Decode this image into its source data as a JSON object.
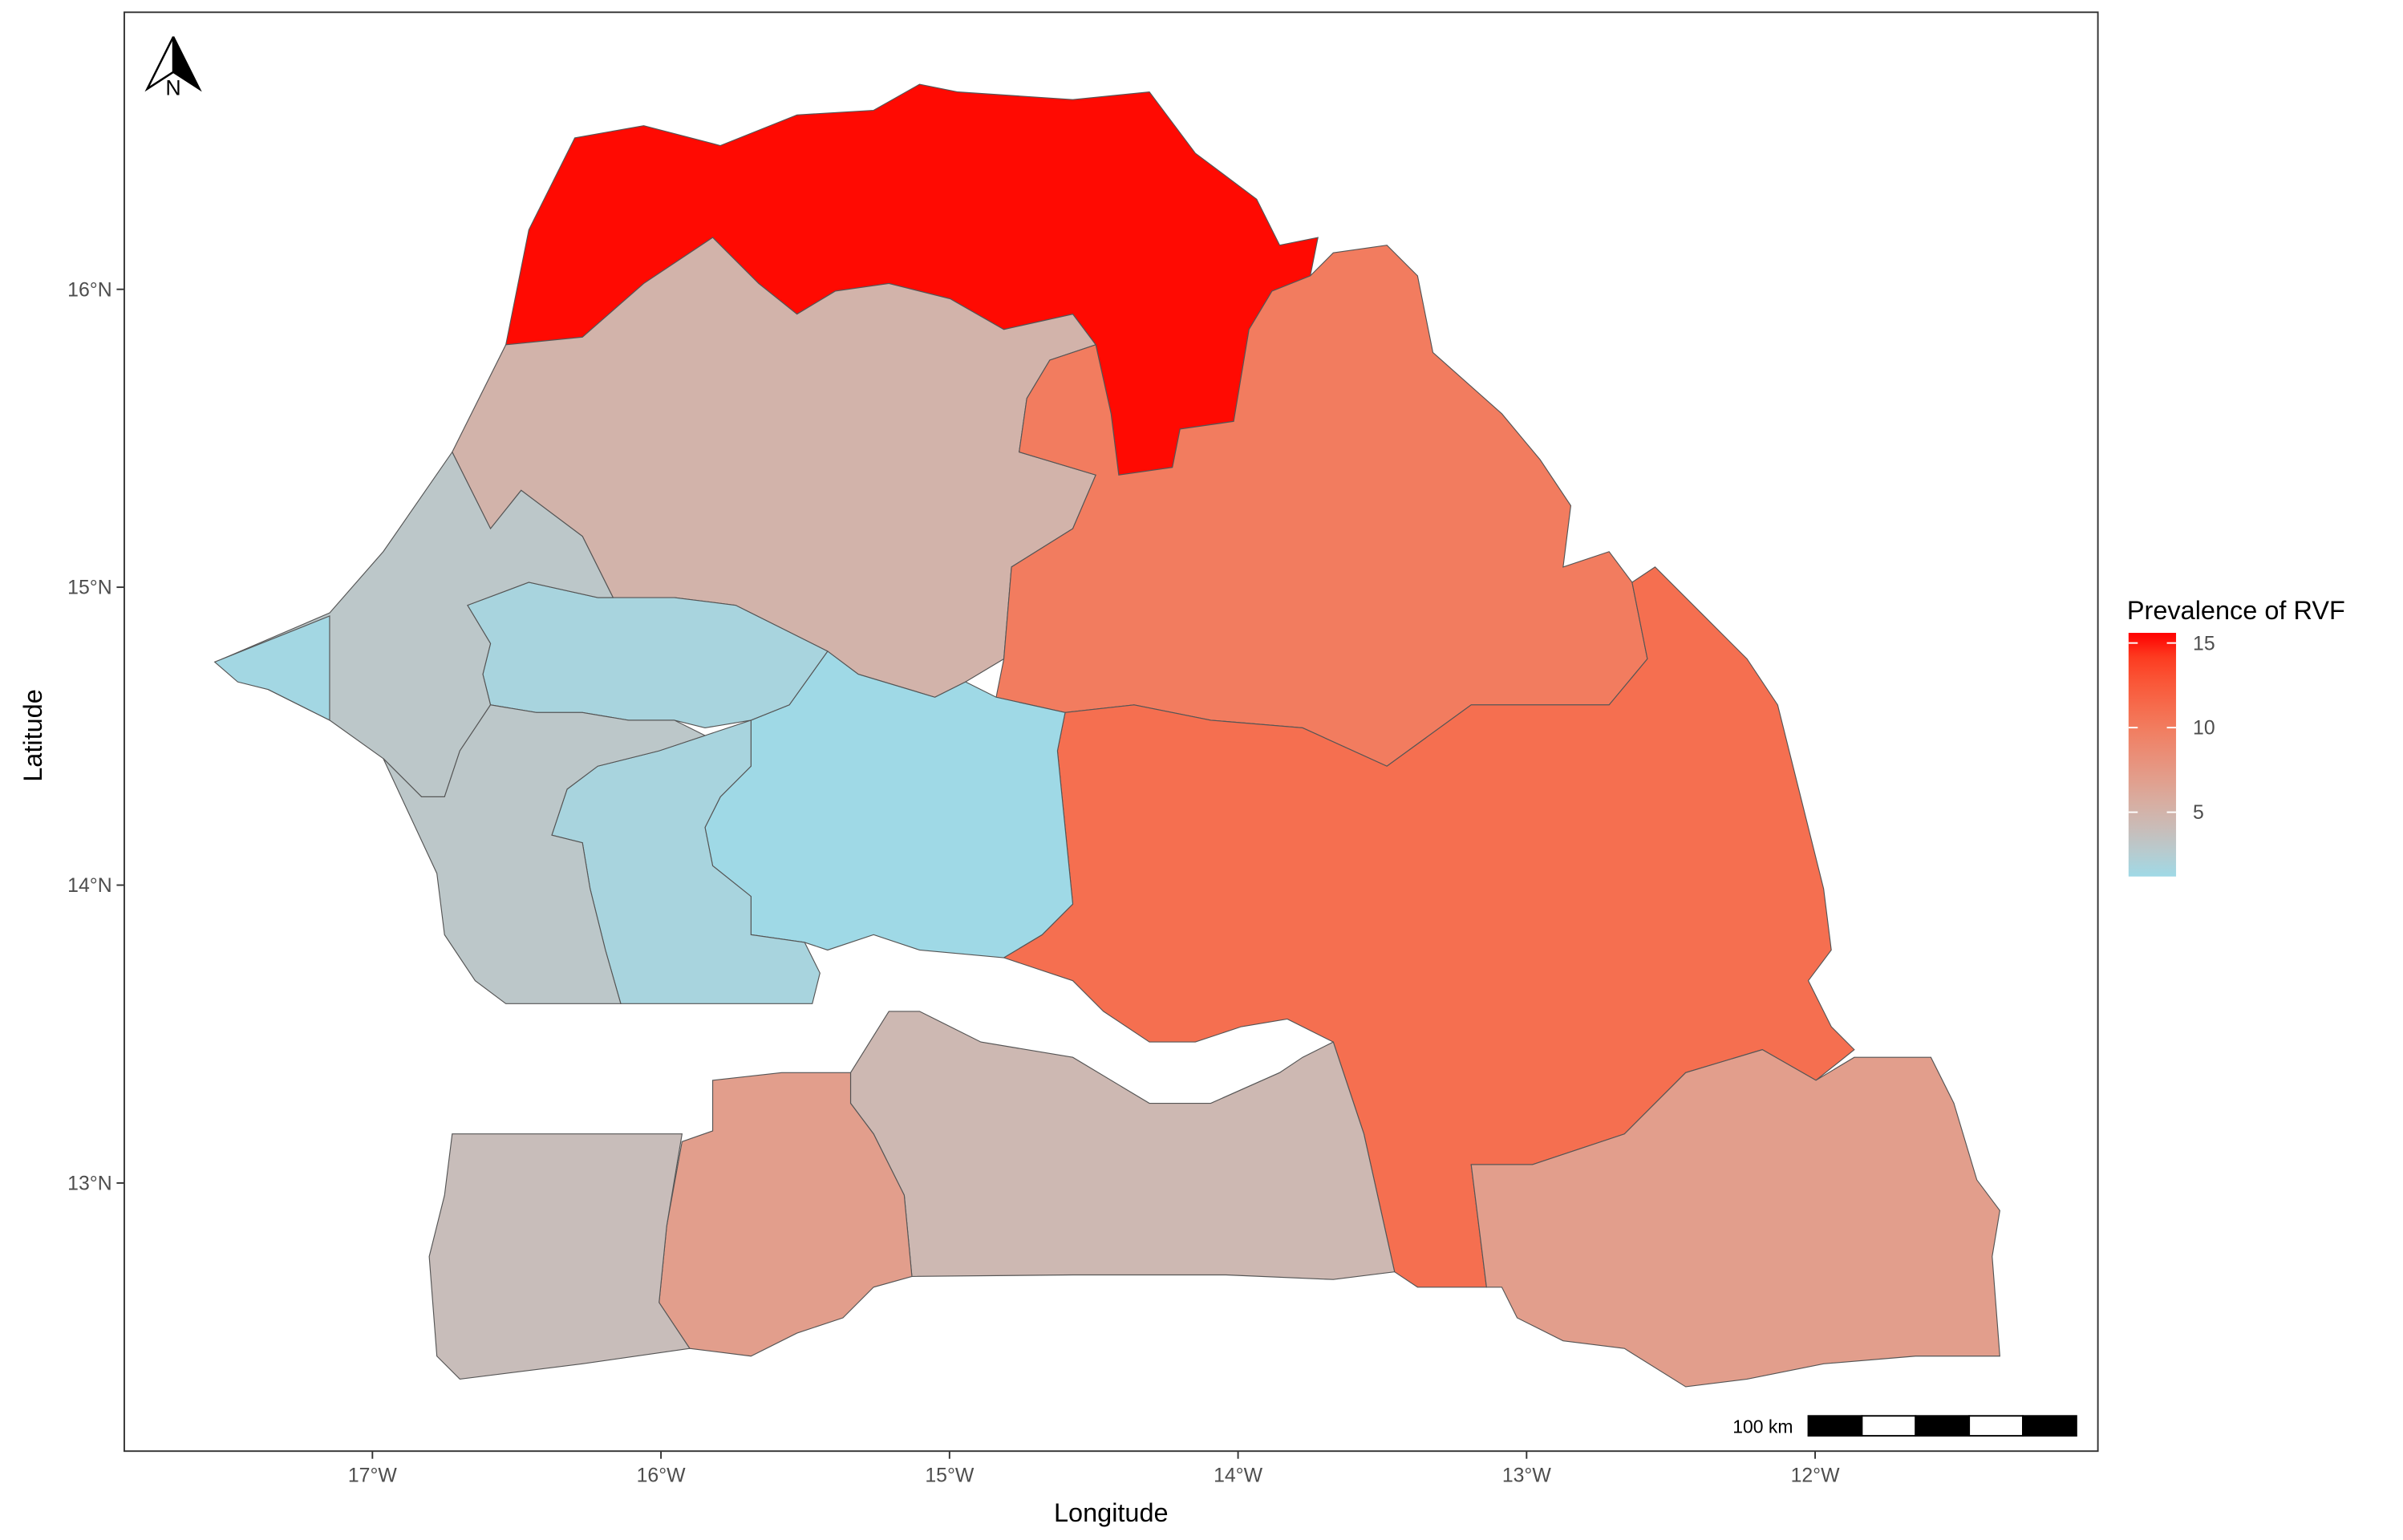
{
  "chart_data": {
    "type": "choropleth",
    "x_label": "Longitude",
    "y_label": "Latitude",
    "xlim": [
      -17.86,
      -11.02
    ],
    "ylim": [
      12.1,
      16.93
    ],
    "xticks": [
      {
        "value": -17,
        "label": "17°W"
      },
      {
        "value": -16,
        "label": "16°W"
      },
      {
        "value": -15,
        "label": "15°W"
      },
      {
        "value": -14,
        "label": "14°W"
      },
      {
        "value": -13,
        "label": "13°W"
      },
      {
        "value": -12,
        "label": "12°W"
      }
    ],
    "yticks": [
      {
        "value": 13,
        "label": "13°N"
      },
      {
        "value": 14,
        "label": "14°N"
      },
      {
        "value": 15,
        "label": "15°N"
      },
      {
        "value": 16,
        "label": "16°N"
      }
    ],
    "legend_title": "Prevalence of RVF",
    "colorbar_lim": [
      1.2,
      15.6
    ],
    "colorbar_ticks": [
      5,
      10,
      15
    ],
    "low_color": "#9fd9e6",
    "high_color": "#ff0000",
    "region_values": [
      15.5,
      5,
      10,
      11,
      7,
      4.5,
      7,
      4,
      1.2,
      1.7,
      1.7,
      3,
      1.4,
      3
    ],
    "scale_bar_label": "100 km",
    "north_label": "N"
  }
}
